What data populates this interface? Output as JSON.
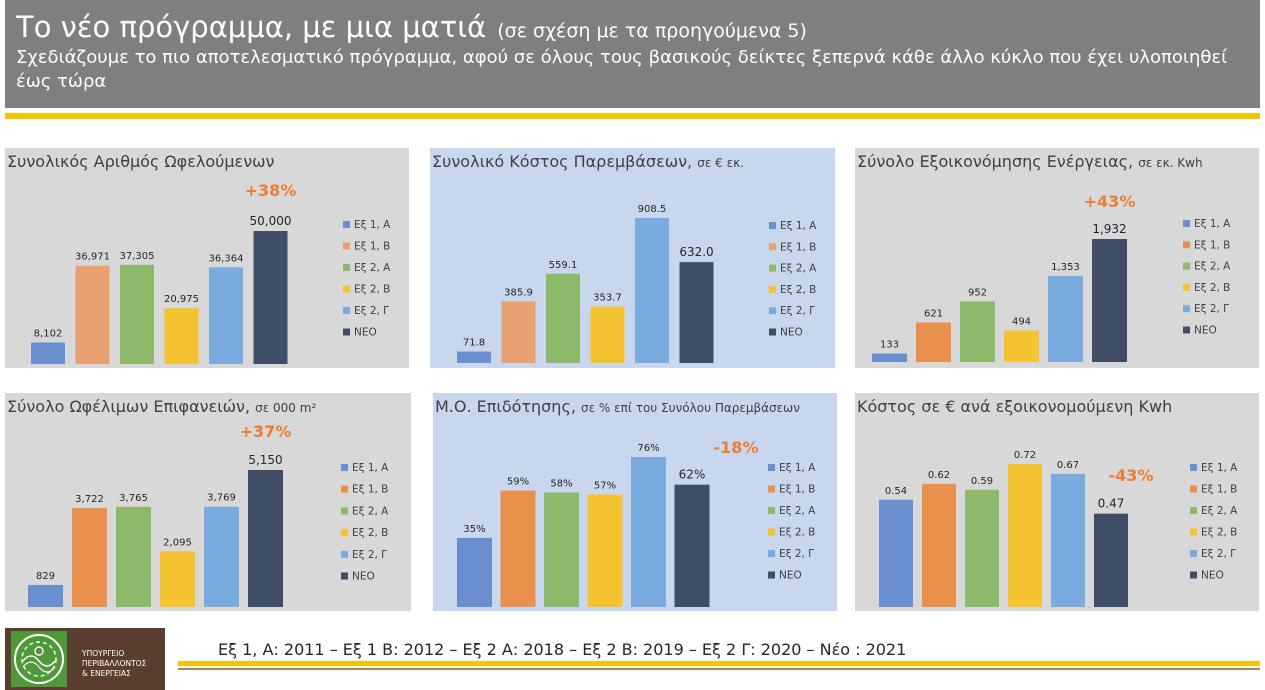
{
  "header": {
    "title": "Το νέο πρόγραμμα, με μια ματιά",
    "title_note": "(σε σχέση με τα προηγούμενα 5)",
    "subtitle": "Σχεδιάζουμε το πιο αποτελεσματικό πρόγραμμα, αφού σε όλους τους βασικούς δείκτες ξεπερνά κάθε άλλο κύκλο που έχει υλοποιηθεί έως τώρα"
  },
  "legend_labels": [
    "Εξ 1, Α",
    "Εξ 1, Β",
    "Εξ 2, Α",
    "Εξ 2, Β",
    "Εξ 2, Γ",
    "ΝΕΟ"
  ],
  "colors": {
    "series": [
      "#6a8fd1",
      "#e8a070",
      "#8cba6a",
      "#f5c332",
      "#7aabdf",
      "#3f4e66"
    ],
    "series_alt": [
      "#6a8fd1",
      "#e8904c",
      "#8cba6a",
      "#f5c332",
      "#7aabdf",
      "#3f4e66"
    ],
    "highlight": "#ed7d31",
    "header_bg": "#7f7f7f",
    "accent_yellow": "#f5c400"
  },
  "chart_data": [
    {
      "type": "bar",
      "title": "Συνολικός Αριθμός Ωφελούμενων",
      "title_unit": "",
      "categories": [
        "Εξ 1, Α",
        "Εξ 1, Β",
        "Εξ 2, Α",
        "Εξ 2, Β",
        "Εξ 2, Γ",
        "ΝΕΟ"
      ],
      "values": [
        8102,
        36971,
        37305,
        20975,
        36364,
        50000
      ],
      "value_labels": [
        "8,102",
        "36,971",
        "37,305",
        "20,975",
        "36,364",
        "50,000"
      ],
      "annotation": "+38%",
      "ylim": [
        0,
        50000
      ],
      "legend": "right"
    },
    {
      "type": "bar",
      "title": "Συνολικό Κόστος Παρεμβάσεων,",
      "title_unit": "σε € εκ.",
      "categories": [
        "Εξ 1, Α",
        "Εξ 1, Β",
        "Εξ 2, Α",
        "Εξ 2, Β",
        "Εξ 2, Γ",
        "ΝΕΟ"
      ],
      "values": [
        71.8,
        385.9,
        559.1,
        353.7,
        908.5,
        632.0
      ],
      "value_labels": [
        "71.8",
        "385.9",
        "559.1",
        "353.7",
        "908.5",
        "632.0"
      ],
      "annotation": "",
      "ylim": [
        0,
        908.5
      ],
      "legend": "right"
    },
    {
      "type": "bar",
      "title": "Σύνολο Εξοικονόμησης Ενέργειας,",
      "title_unit": "σε εκ. Kwh",
      "categories": [
        "Εξ 1, Α",
        "Εξ 1, Β",
        "Εξ 2, Α",
        "Εξ 2, Β",
        "Εξ 2, Γ",
        "ΝΕΟ"
      ],
      "values": [
        133,
        621,
        952,
        494,
        1353,
        1932
      ],
      "value_labels": [
        "133",
        "621",
        "952",
        "494",
        "1,353",
        "1,932"
      ],
      "annotation": "+43%",
      "ylim": [
        0,
        1932
      ],
      "legend": "right"
    },
    {
      "type": "bar",
      "title": "Σύνολο Ωφέλιμων Επιφανειών,",
      "title_unit": "σε 000 m²",
      "categories": [
        "Εξ 1, Α",
        "Εξ 1, Β",
        "Εξ 2, Α",
        "Εξ 2, Β",
        "Εξ 2, Γ",
        "ΝΕΟ"
      ],
      "values": [
        829,
        3722,
        3765,
        2095,
        3769,
        5150
      ],
      "value_labels": [
        "829",
        "3,722",
        "3,765",
        "2,095",
        "3,769",
        "5,150"
      ],
      "annotation": "+37%",
      "ylim": [
        0,
        5150
      ],
      "legend": "right"
    },
    {
      "type": "bar",
      "title": "Μ.Ο. Επιδότησης,",
      "title_unit": "σε % επί του Συνόλου Παρεμβάσεων",
      "categories": [
        "Εξ 1, Α",
        "Εξ 1, Β",
        "Εξ 2, Α",
        "Εξ 2, Β",
        "Εξ 2, Γ",
        "ΝΕΟ"
      ],
      "values": [
        35,
        59,
        58,
        57,
        76,
        62
      ],
      "value_labels": [
        "35%",
        "59%",
        "58%",
        "57%",
        "76%",
        "62%"
      ],
      "annotation": "-18%",
      "ylim": [
        0,
        76
      ],
      "legend": "right"
    },
    {
      "type": "bar",
      "title": "Κόστος σε € ανά εξοικονομούμενη Kwh",
      "title_unit": "",
      "categories": [
        "Εξ 1, Α",
        "Εξ 1, Β",
        "Εξ 2, Α",
        "Εξ 2, Β",
        "Εξ 2, Γ",
        "ΝΕΟ"
      ],
      "values": [
        0.54,
        0.62,
        0.59,
        0.72,
        0.67,
        0.47
      ],
      "value_labels": [
        "0.54",
        "0.62",
        "0.59",
        "0.72",
        "0.67",
        "0.47"
      ],
      "annotation": "-43%",
      "ylim": [
        0,
        0.72
      ],
      "legend": "right"
    }
  ],
  "footer": {
    "legend_text": "Εξ 1, Α: 2011 – Εξ 1 Β: 2012 – Εξ 2 Α: 2018 – Εξ 2 Β: 2019 – Εξ 2 Γ: 2020 – Νέο : 2021",
    "logo_text": [
      "ΥΠΟΥΡΓΕΙΟ",
      "ΠΕΡΙΒΑΛΛΟΝΤΟΣ",
      "& ΕΝΕΡΓΕΙΑΣ"
    ]
  }
}
